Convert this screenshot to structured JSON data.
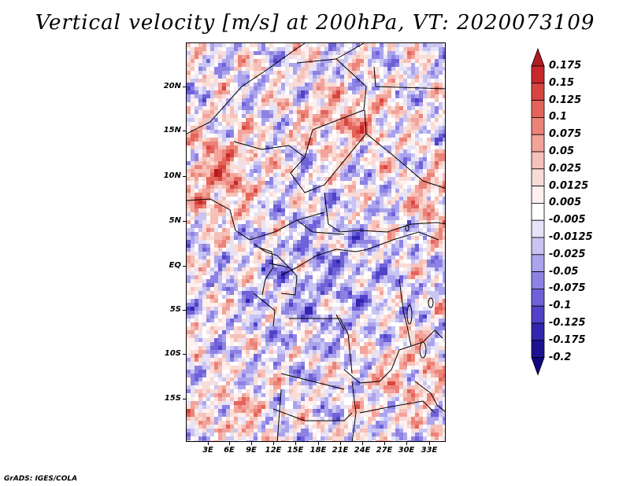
{
  "title": "Vertical velocity [m/s] at 200hPa, VT: 2020073109",
  "footer": "GrADS: IGES/COLA",
  "map": {
    "lat_labels": [
      "20N",
      "15N",
      "10N",
      "5N",
      "EQ",
      "5S",
      "10S",
      "15S"
    ],
    "lon_labels": [
      "3E",
      "6E",
      "9E",
      "12E",
      "15E",
      "18E",
      "21E",
      "24E",
      "27E",
      "30E",
      "33E"
    ]
  },
  "colorbar": {
    "levels": [
      "0.175",
      "0.15",
      "0.125",
      "0.1",
      "0.075",
      "0.05",
      "0.025",
      "0.0125",
      "0.005",
      "-0.005",
      "-0.0125",
      "-0.025",
      "-0.05",
      "-0.075",
      "-0.1",
      "-0.125",
      "-0.175",
      "-0.2"
    ],
    "colors": [
      "#b01c20",
      "#c8282c",
      "#d9453f",
      "#e4645b",
      "#ec8379",
      "#f2a39a",
      "#f6c1b9",
      "#fadcd6",
      "#fdf0ee",
      "#ffffff",
      "#e6e3f8",
      "#c9c4f2",
      "#aba3ec",
      "#8d82e3",
      "#6f61d8",
      "#5142c8",
      "#3226b0",
      "#1e1190",
      "#110880"
    ]
  }
}
